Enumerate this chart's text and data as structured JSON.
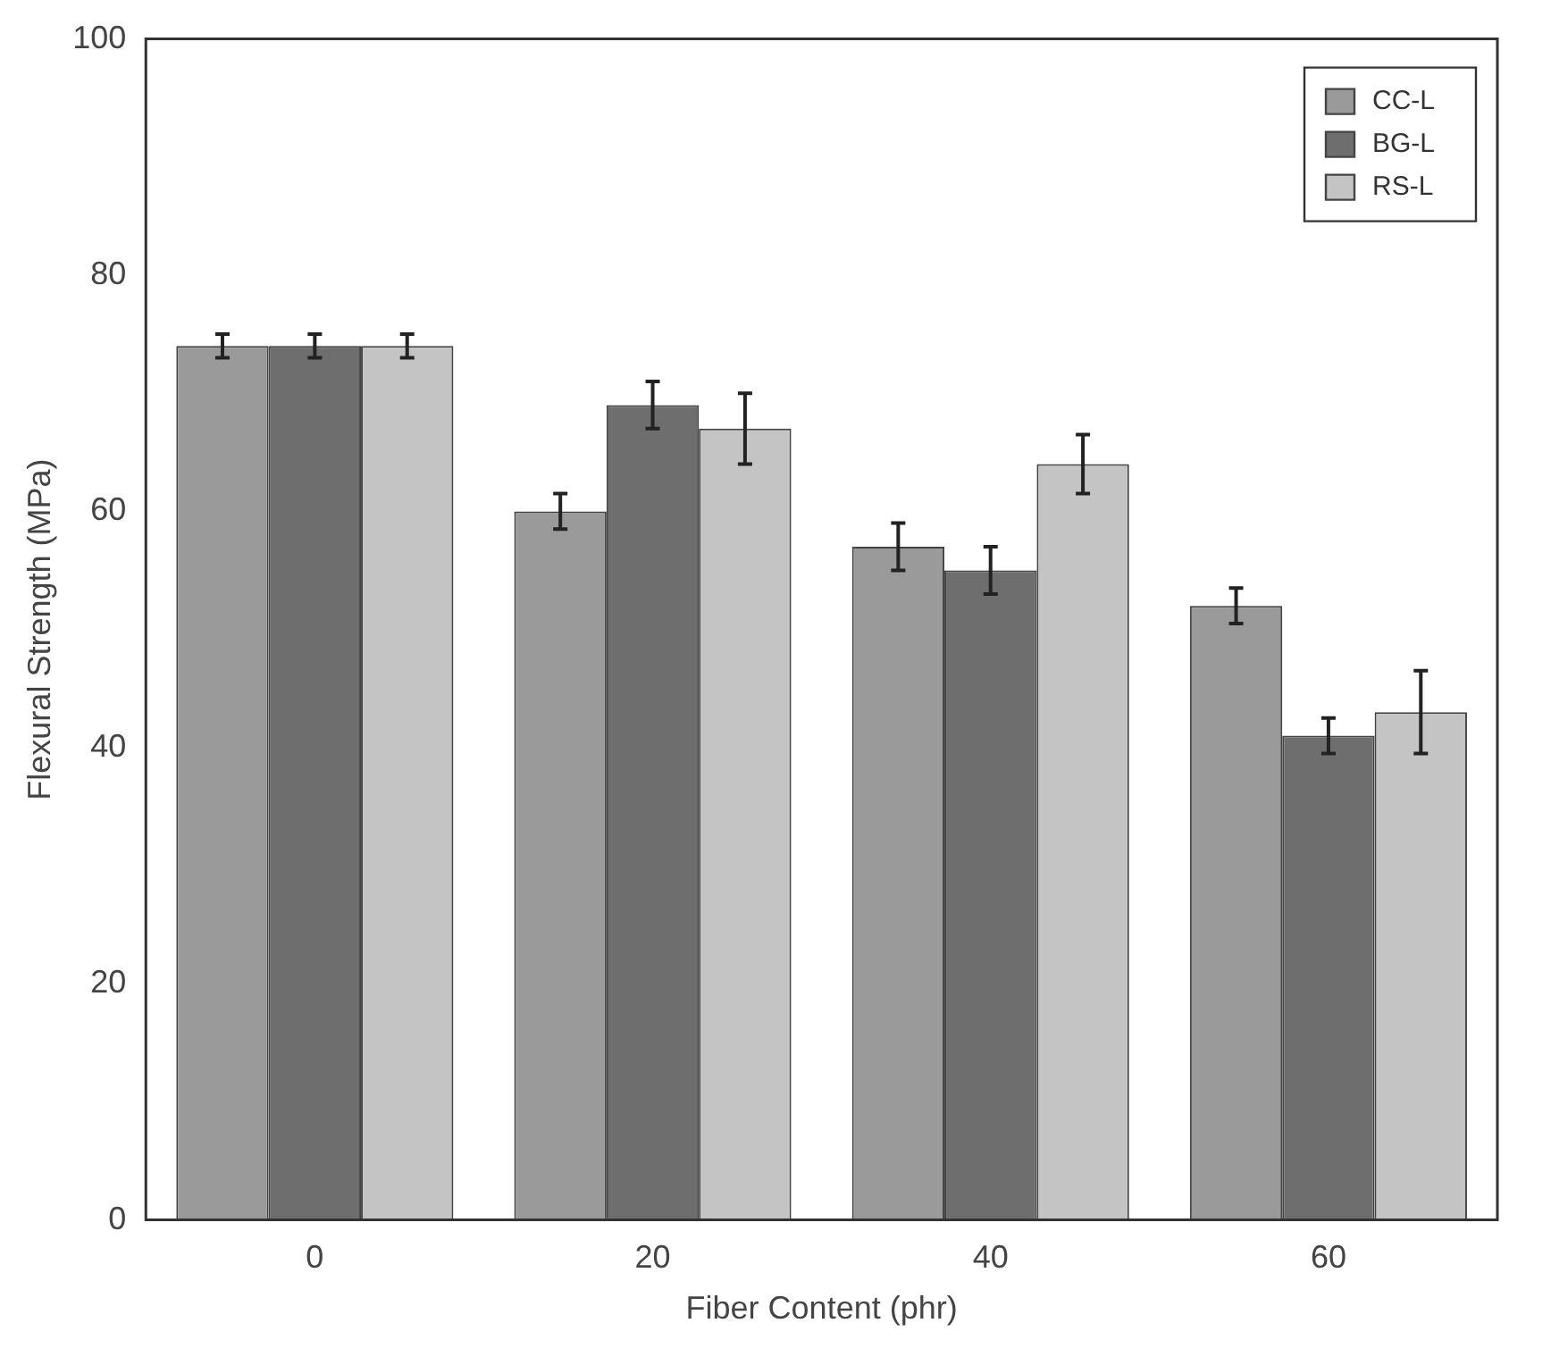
{
  "chart_data": {
    "type": "bar",
    "xlabel": "Fiber Content (phr)",
    "ylabel": "Flexural Strength (MPa)",
    "categories": [
      "0",
      "20",
      "40",
      "60"
    ],
    "series": [
      {
        "name": "CC-L",
        "color": "#9a9a9a",
        "values": [
          74,
          60,
          57,
          52
        ],
        "errors": [
          1,
          1.5,
          2,
          1.5
        ]
      },
      {
        "name": "BG-L",
        "color": "#6e6e6e",
        "values": [
          74,
          69,
          55,
          41
        ],
        "errors": [
          1,
          2,
          2,
          1.5
        ]
      },
      {
        "name": "RS-L",
        "color": "#c4c4c4",
        "values": [
          74,
          67,
          64,
          43
        ],
        "errors": [
          1,
          3,
          2.5,
          3.5
        ]
      }
    ],
    "ylim": [
      0,
      100
    ],
    "yticks": [
      0,
      20,
      40,
      60,
      80,
      100
    ],
    "grid": false,
    "legend": "top right"
  }
}
